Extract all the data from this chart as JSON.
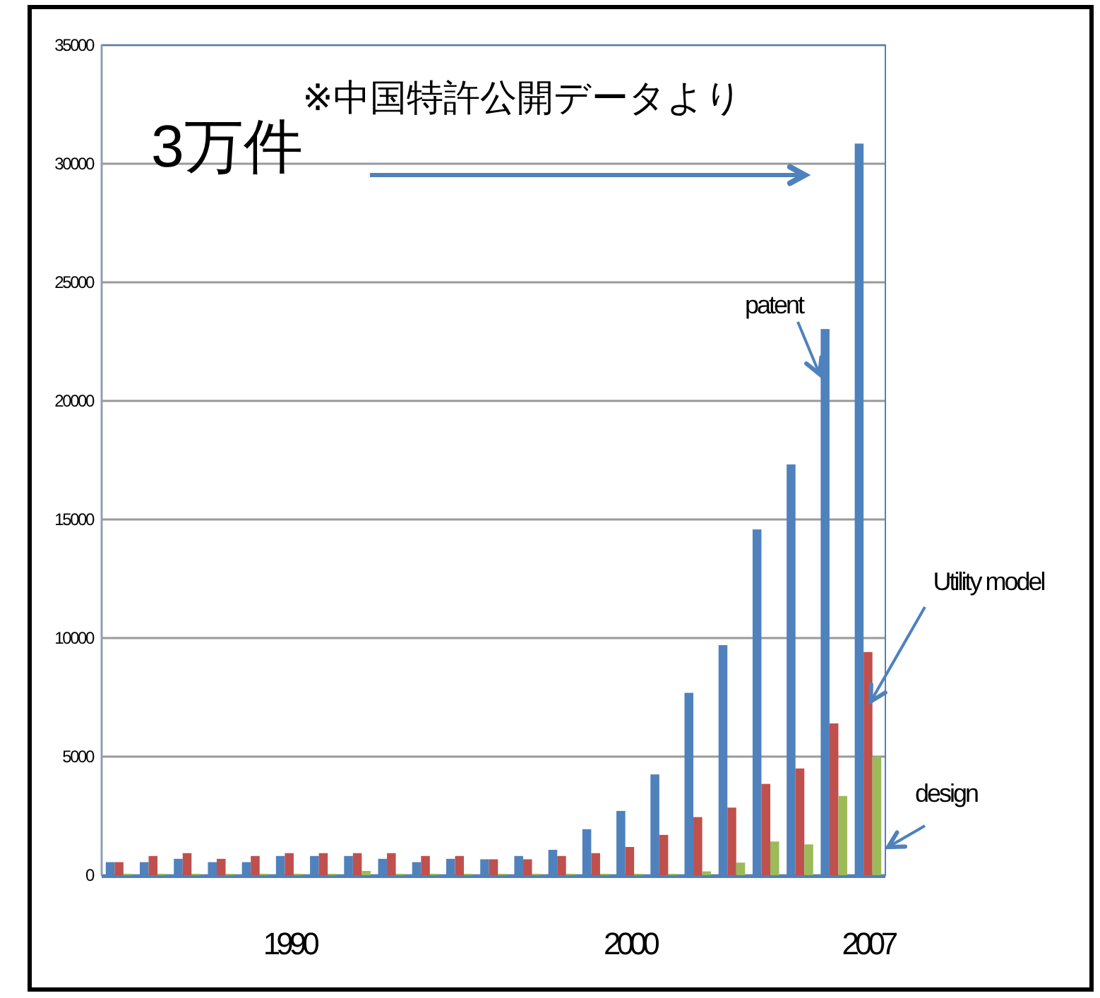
{
  "chart_data": {
    "type": "bar",
    "categories": [
      null,
      null,
      null,
      null,
      null,
      "1990",
      null,
      null,
      null,
      null,
      null,
      null,
      null,
      null,
      null,
      "2000",
      null,
      null,
      null,
      null,
      null,
      null,
      "2007"
    ],
    "series": [
      {
        "name": "patent",
        "color": "#4f81bd",
        "values": [
          550,
          550,
          690,
          550,
          550,
          810,
          810,
          810,
          690,
          550,
          690,
          670,
          810,
          1070,
          1940,
          2710,
          4250,
          7690,
          9700,
          14580,
          17320,
          23030,
          30850
        ]
      },
      {
        "name": "Utility model",
        "color": "#c0504d",
        "values": [
          550,
          810,
          930,
          690,
          810,
          930,
          930,
          930,
          930,
          810,
          810,
          670,
          670,
          810,
          930,
          1190,
          1700,
          2450,
          2850,
          3850,
          4500,
          6400,
          9410
        ]
      },
      {
        "name": "design",
        "color": "#9bbb59",
        "values": [
          60,
          60,
          60,
          60,
          60,
          60,
          60,
          180,
          60,
          60,
          60,
          60,
          60,
          60,
          60,
          60,
          60,
          160,
          530,
          1420,
          1300,
          3340,
          5000
        ]
      }
    ],
    "ylim": [
      0,
      35000
    ],
    "yticks": [
      0,
      5000,
      10000,
      15000,
      20000,
      25000,
      30000,
      35000
    ],
    "grid": "y",
    "annotations": [
      "※中国特許公開データより",
      "3万件"
    ]
  }
}
